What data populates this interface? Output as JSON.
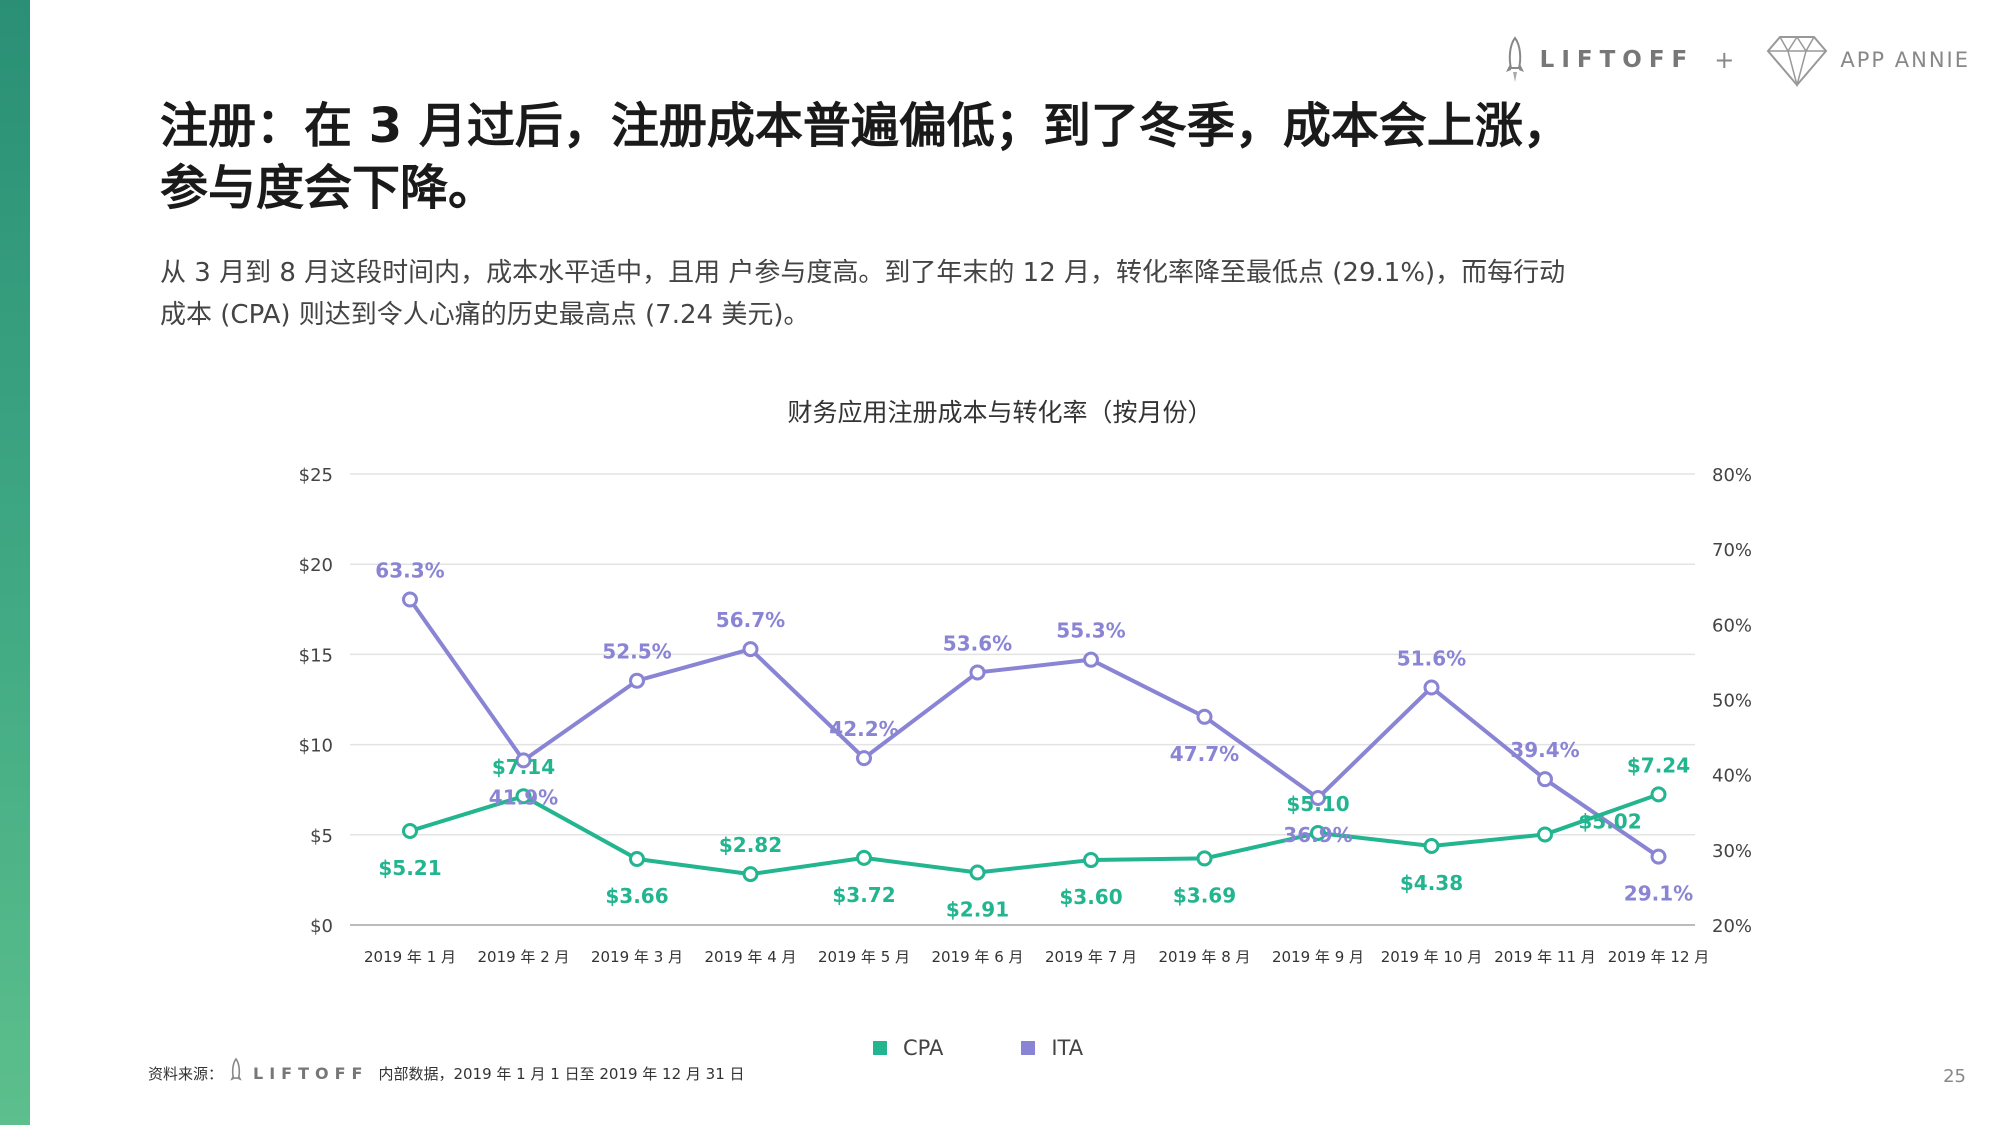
{
  "brand": {
    "liftoff_name": "LIFTOFF",
    "plus": "+",
    "appannie_name": "APP ANNIE"
  },
  "heading": {
    "title_line1": "注册：在 3 月过后，注册成本普遍偏低；到了冬季，成本会上涨，",
    "title_line2": "参与度会下降。",
    "subtitle_line1": "从 3 月到 8 月这段时间内，成本水平适中，且用 户参与度高。到了年末的 12 月，转化率降至最低点 (29.1%)，而每行动",
    "subtitle_line2": "成本 (CPA) 则达到令人心痛的历史最高点 (7.24 美元)。"
  },
  "chart_data": {
    "type": "line",
    "title": "财务应用注册成本与转化率（按月份）",
    "categories": [
      "2019 年 1 月",
      "2019 年 2 月",
      "2019 年 3 月",
      "2019 年 4 月",
      "2019 年 5 月",
      "2019 年 6 月",
      "2019 年 7 月",
      "2019 年 8 月",
      "2019 年 9 月",
      "2019 年 10 月",
      "2019 年 11 月",
      "2019 年 12 月"
    ],
    "y_left": {
      "ticks": [
        "$0",
        "$5",
        "$10",
        "$15",
        "$20",
        "$25"
      ]
    },
    "y_right": {
      "ticks": [
        "20%",
        "30%",
        "40%",
        "50%",
        "60%",
        "70%",
        "80%"
      ]
    },
    "grid": true,
    "legend_position": "bottom-center",
    "series": [
      {
        "name": "CPA",
        "axis": "left",
        "color": "#22b58f",
        "values": [
          5.21,
          7.14,
          3.66,
          2.82,
          3.72,
          2.91,
          3.6,
          3.69,
          5.1,
          4.38,
          5.02,
          7.24
        ],
        "labels": [
          "$5.21",
          "$7.14",
          "$3.66",
          "$2.82",
          "$3.72",
          "$2.91",
          "$3.60",
          "$3.69",
          "$5.10",
          "$4.38",
          "$5.02",
          "$7.24"
        ]
      },
      {
        "name": "ITA",
        "axis": "right",
        "color": "#8a84d4",
        "values": [
          63.3,
          41.9,
          52.5,
          56.7,
          42.2,
          53.6,
          55.3,
          47.7,
          36.9,
          51.6,
          39.4,
          29.1
        ],
        "labels": [
          "63.3%",
          "41.9%",
          "52.5%",
          "56.7%",
          "42.2%",
          "53.6%",
          "55.3%",
          "47.7%",
          "36.9%",
          "51.6%",
          "39.4%",
          "29.1%"
        ]
      }
    ]
  },
  "legend": {
    "cpa": "CPA",
    "ita": "ITA"
  },
  "footer": {
    "source_label": "资料来源：",
    "source_brand": "LIFTOFF",
    "source_text": "内部数据，2019 年 1 月 1 日至 2019 年 12 月 31 日",
    "page_number": "25"
  },
  "colors": {
    "cpa": "#22b58f",
    "ita": "#8a84d4",
    "accent_bar": "#3fa883"
  }
}
